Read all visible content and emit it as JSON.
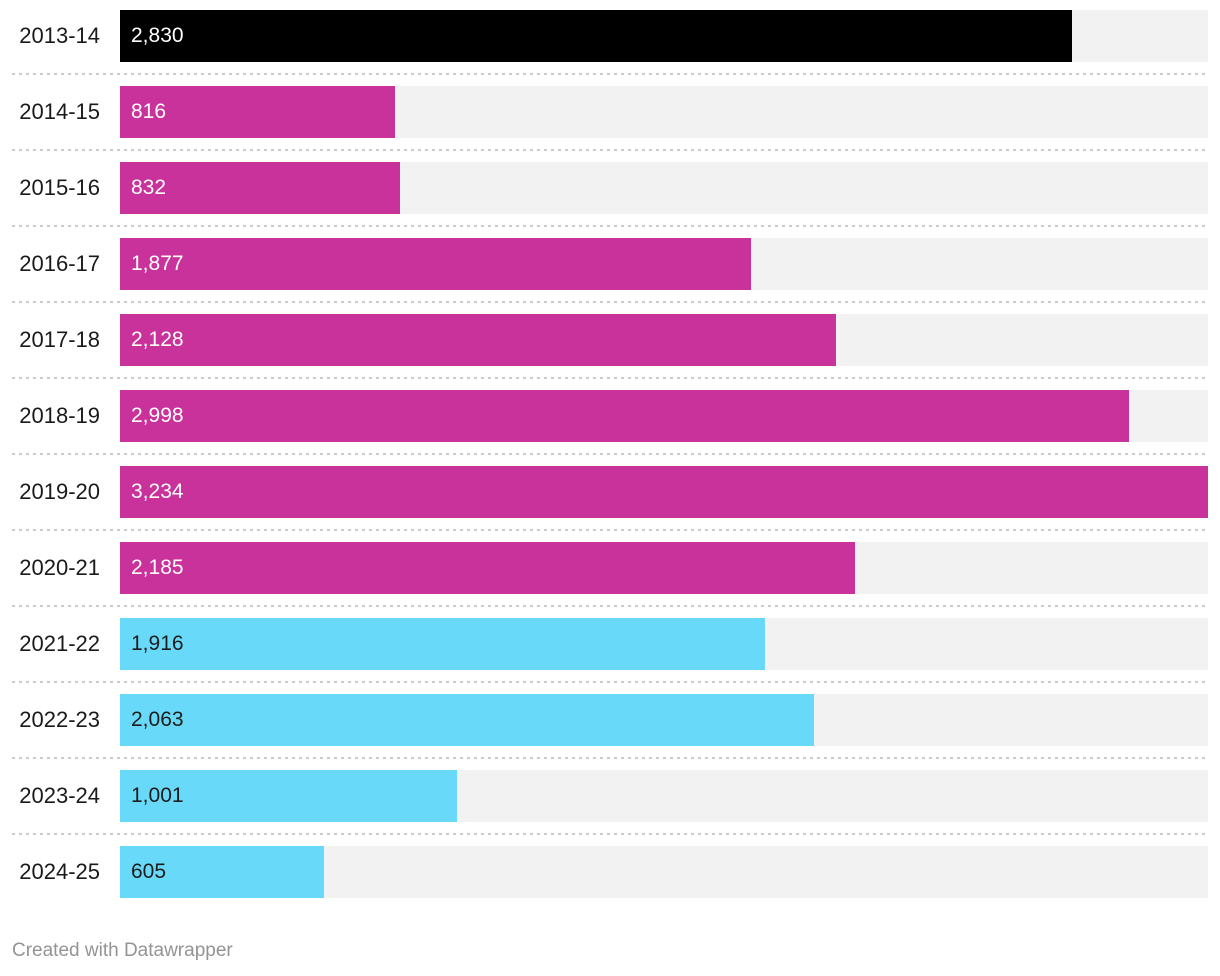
{
  "chart_data": {
    "type": "bar",
    "orientation": "horizontal",
    "title": "",
    "xlabel": "",
    "ylabel": "",
    "xlim": [
      0,
      3234
    ],
    "grid": false,
    "legend": false,
    "categories": [
      "2013-14",
      "2014-15",
      "2015-16",
      "2016-17",
      "2017-18",
      "2018-19",
      "2019-20",
      "2020-21",
      "2021-22",
      "2022-23",
      "2023-24",
      "2024-25"
    ],
    "values": [
      2830,
      816,
      832,
      1877,
      2128,
      2998,
      3234,
      2185,
      1916,
      2063,
      1001,
      605
    ],
    "value_labels": [
      "2,830",
      "816",
      "832",
      "1,877",
      "2,128",
      "2,998",
      "3,234",
      "2,185",
      "1,916",
      "2,063",
      "1,001",
      "605"
    ],
    "rows": [
      {
        "label": "2013-14",
        "value": 2830,
        "display": "2,830",
        "bar_color": "#000000",
        "value_text_color": "#ffffff"
      },
      {
        "label": "2014-15",
        "value": 816,
        "display": "816",
        "bar_color": "#c9329b",
        "value_text_color": "#ffffff"
      },
      {
        "label": "2015-16",
        "value": 832,
        "display": "832",
        "bar_color": "#c9329b",
        "value_text_color": "#ffffff"
      },
      {
        "label": "2016-17",
        "value": 1877,
        "display": "1,877",
        "bar_color": "#c9329b",
        "value_text_color": "#ffffff"
      },
      {
        "label": "2017-18",
        "value": 2128,
        "display": "2,128",
        "bar_color": "#c9329b",
        "value_text_color": "#ffffff"
      },
      {
        "label": "2018-19",
        "value": 2998,
        "display": "2,998",
        "bar_color": "#c9329b",
        "value_text_color": "#ffffff"
      },
      {
        "label": "2019-20",
        "value": 3234,
        "display": "3,234",
        "bar_color": "#c9329b",
        "value_text_color": "#ffffff"
      },
      {
        "label": "2020-21",
        "value": 2185,
        "display": "2,185",
        "bar_color": "#c9329b",
        "value_text_color": "#ffffff"
      },
      {
        "label": "2021-22",
        "value": 1916,
        "display": "1,916",
        "bar_color": "#68d9f8",
        "value_text_color": "#1d1d1d"
      },
      {
        "label": "2022-23",
        "value": 2063,
        "display": "2,063",
        "bar_color": "#68d9f8",
        "value_text_color": "#1d1d1d"
      },
      {
        "label": "2023-24",
        "value": 1001,
        "display": "1,001",
        "bar_color": "#68d9f8",
        "value_text_color": "#1d1d1d"
      },
      {
        "label": "2024-25",
        "value": 605,
        "display": "605",
        "bar_color": "#68d9f8",
        "value_text_color": "#1d1d1d"
      }
    ]
  },
  "colors": {
    "track_background": "#f2f2f2",
    "separator_dots": "#cbcbcb",
    "category_label_text": "#1a1a1a",
    "footer_text": "#949494",
    "page_background": "#ffffff"
  },
  "footer": {
    "credit": "Created with Datawrapper"
  }
}
